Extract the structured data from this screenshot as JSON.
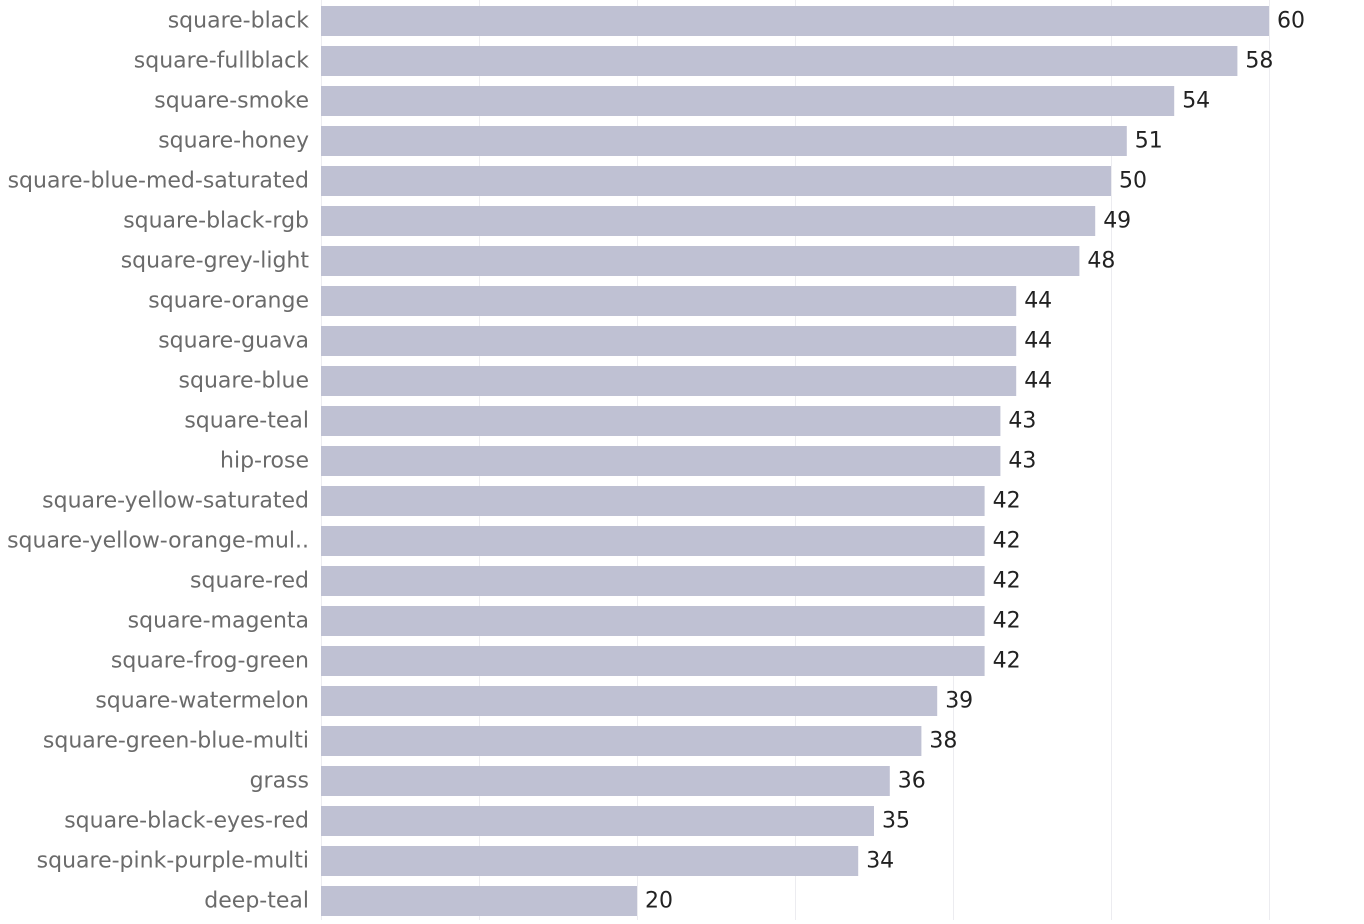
{
  "chart_data": {
    "type": "bar",
    "orientation": "horizontal",
    "title": "",
    "xlabel": "",
    "ylabel": "",
    "categories": [
      "square-black",
      "square-fullblack",
      "square-smoke",
      "square-honey",
      "square-blue-med-saturated",
      "square-black-rgb",
      "square-grey-light",
      "square-orange",
      "square-guava",
      "square-blue",
      "square-teal",
      "hip-rose",
      "square-yellow-saturated",
      "square-yellow-orange-mul..",
      "square-red",
      "square-magenta",
      "square-frog-green",
      "square-watermelon",
      "square-green-blue-multi",
      "grass",
      "square-black-eyes-red",
      "square-pink-purple-multi",
      "deep-teal"
    ],
    "values": [
      60,
      58,
      54,
      51,
      50,
      49,
      48,
      44,
      44,
      44,
      43,
      43,
      42,
      42,
      42,
      42,
      42,
      39,
      38,
      36,
      35,
      34,
      20
    ],
    "xlim": [
      0,
      65
    ],
    "grid": true,
    "legend": "none",
    "colors": {
      "bar": "#bfc1d3",
      "label": "#6b6b6b",
      "value": "#222222",
      "grid": "#ececf0"
    }
  }
}
